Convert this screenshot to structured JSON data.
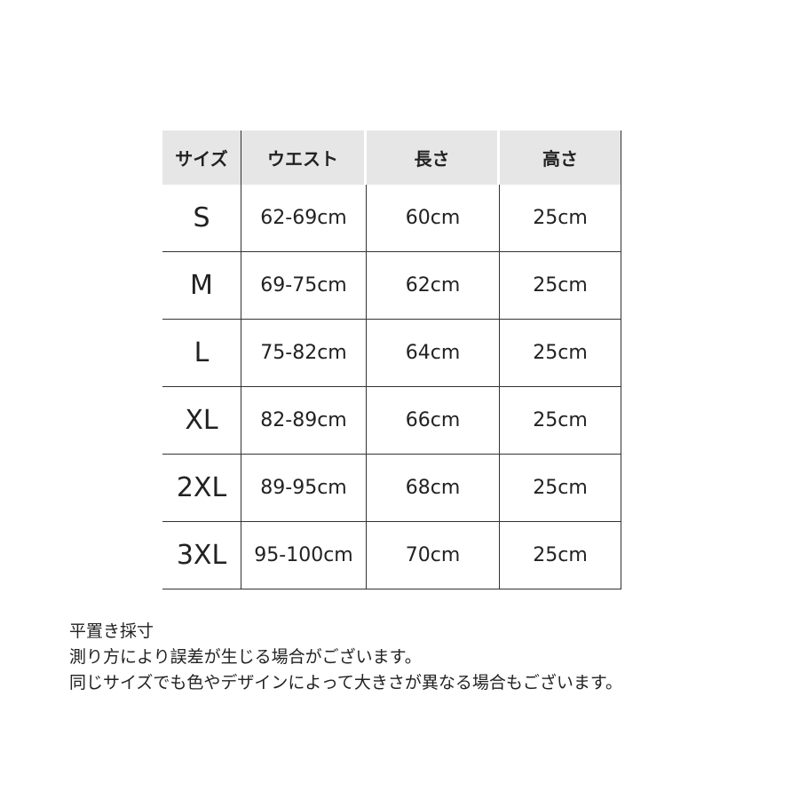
{
  "table": {
    "headers": [
      "サイズ",
      "ウエスト",
      "長さ",
      "高さ"
    ],
    "rows": [
      [
        "S",
        "62-69cm",
        "60cm",
        "25cm"
      ],
      [
        "M",
        "69-75cm",
        "62cm",
        "25cm"
      ],
      [
        "L",
        "75-82cm",
        "64cm",
        "25cm"
      ],
      [
        "XL",
        "82-89cm",
        "66cm",
        "25cm"
      ],
      [
        "2XL",
        "89-95cm",
        "68cm",
        "25cm"
      ],
      [
        "3XL",
        "95-100cm",
        "70cm",
        "25cm"
      ]
    ]
  },
  "notes": [
    "平置き採寸",
    "測り方により誤差が生じる場合がございます。",
    "同じサイズでも色やデザインによって大きさが異なる場合もございます。"
  ]
}
